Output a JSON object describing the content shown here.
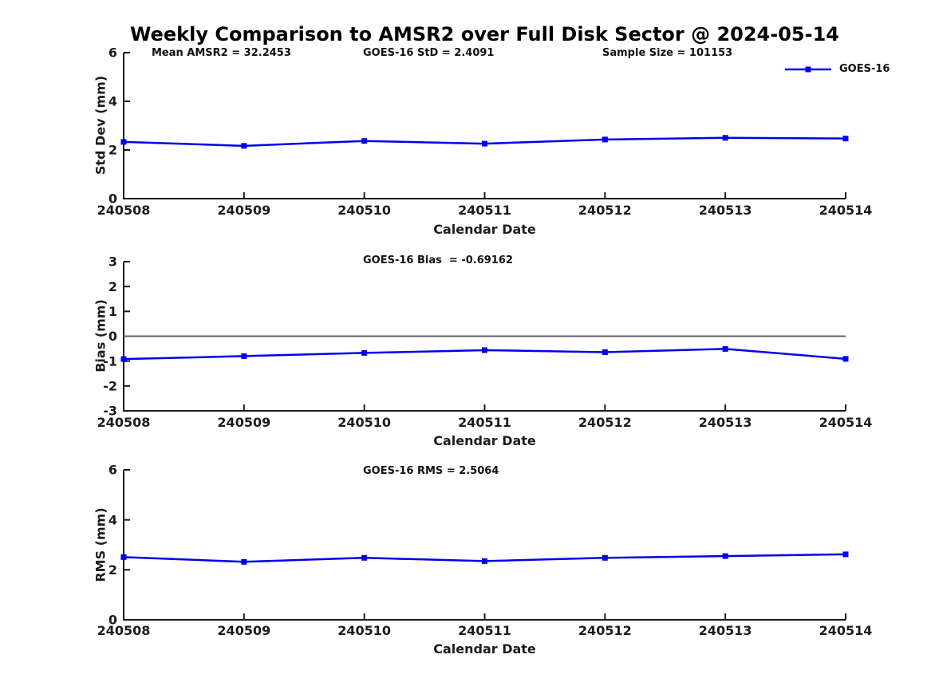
{
  "title": "Weekly Comparison to AMSR2 over Full Disk Sector @ 2024-05-14",
  "legend": {
    "label": "GOES-16",
    "color": "#0000ee"
  },
  "chart_data": [
    {
      "type": "line",
      "id": "std-dev",
      "annotations": [
        "Mean AMSR2 = 32.2453",
        "GOES-16 StD = 2.4091",
        "Sample Size = 101153"
      ],
      "categories": [
        "240508",
        "240509",
        "240510",
        "240511",
        "240512",
        "240513",
        "240514"
      ],
      "series": [
        {
          "name": "GOES-16",
          "color": "#0000ee",
          "marker": "square",
          "values": [
            2.33,
            2.17,
            2.37,
            2.26,
            2.43,
            2.5,
            2.47
          ]
        }
      ],
      "xlabel": "Calendar Date",
      "ylabel": "Std Dev (mm)",
      "ylim": [
        0,
        6
      ],
      "yticks": [
        0,
        2,
        4,
        6
      ],
      "grid": false,
      "zero_line": false,
      "legend_position": "upper-right-outside"
    },
    {
      "type": "line",
      "id": "bias",
      "annotations": [
        "GOES-16 Bias  = -0.69162"
      ],
      "categories": [
        "240508",
        "240509",
        "240510",
        "240511",
        "240512",
        "240513",
        "240514"
      ],
      "series": [
        {
          "name": "GOES-16",
          "color": "#0000ee",
          "marker": "square",
          "values": [
            -0.92,
            -0.8,
            -0.67,
            -0.56,
            -0.64,
            -0.51,
            -0.91
          ]
        }
      ],
      "xlabel": "Calendar Date",
      "ylabel": "Bias (mm)",
      "ylim": [
        -3,
        3
      ],
      "yticks": [
        3,
        2,
        1,
        0,
        -1,
        -2,
        -3
      ],
      "grid": false,
      "zero_line": true,
      "zero_line_color": "#666666"
    },
    {
      "type": "line",
      "id": "rms",
      "annotations": [
        "GOES-16 RMS = 2.5064"
      ],
      "categories": [
        "240508",
        "240509",
        "240510",
        "240511",
        "240512",
        "240513",
        "240514"
      ],
      "series": [
        {
          "name": "GOES-16",
          "color": "#0000ee",
          "marker": "square",
          "values": [
            2.51,
            2.32,
            2.48,
            2.35,
            2.48,
            2.55,
            2.62
          ]
        }
      ],
      "xlabel": "Calendar Date",
      "ylabel": "RMS (mm)",
      "ylim": [
        0,
        6
      ],
      "yticks": [
        0,
        2,
        4,
        6
      ],
      "grid": false,
      "zero_line": false
    }
  ]
}
